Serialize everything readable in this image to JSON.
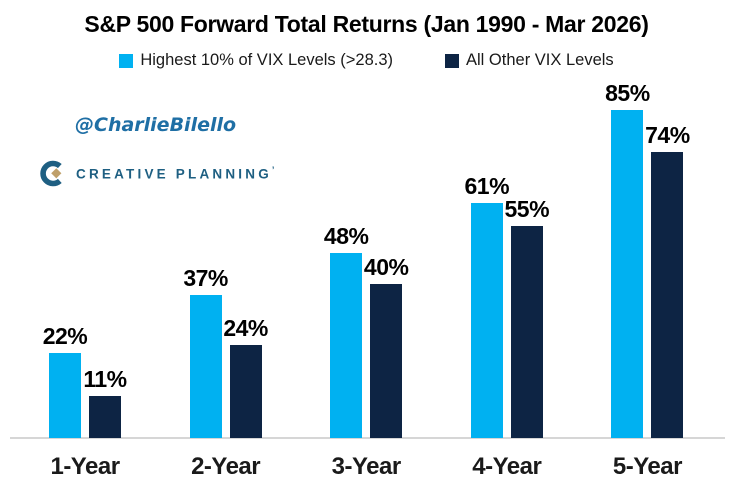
{
  "title": "S&P 500 Forward Total Returns (Jan 1990 - Mar 2026)",
  "watermark": {
    "text": "@CharlieBilello",
    "color": "#1F6FA5"
  },
  "brand": {
    "name": "CREATIVE PLANNING",
    "mark": "’",
    "blue": "#1E5F82",
    "gold": "#BFA06A"
  },
  "legend": [
    {
      "label": "Highest 10% of VIX Levels (>28.3)",
      "color": "#00B1F1"
    },
    {
      "label": "All Other VIX Levels",
      "color": "#0D2444"
    }
  ],
  "chart_data": {
    "type": "bar",
    "title": "S&P 500 Forward Total Returns (Jan 1990 - Mar 2026)",
    "categories": [
      "1-Year",
      "2-Year",
      "3-Year",
      "4-Year",
      "5-Year"
    ],
    "series": [
      {
        "name": "Highest 10% of VIX Levels (>28.3)",
        "color": "#00B1F1",
        "values": [
          22,
          37,
          48,
          61,
          85
        ]
      },
      {
        "name": "All Other VIX Levels",
        "color": "#0D2444",
        "values": [
          11,
          24,
          40,
          55,
          74
        ]
      }
    ],
    "value_suffix": "%",
    "xlabel": "",
    "ylabel": "",
    "ylim": [
      0,
      90
    ],
    "grid": false,
    "legend_position": "top",
    "value_labels": true
  },
  "colors": {
    "axis_line": "#D6D6D6",
    "background": "#FFFFFF",
    "label_text": "#000000"
  }
}
